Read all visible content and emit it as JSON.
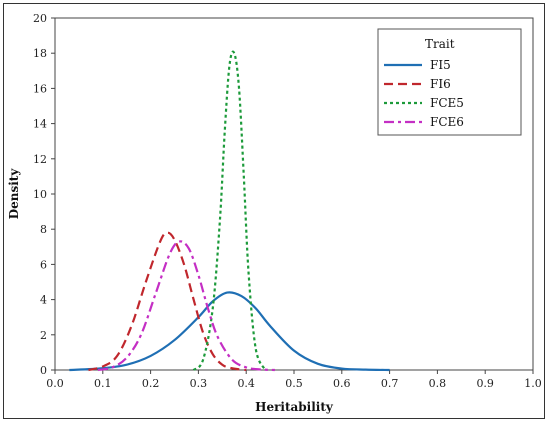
{
  "chart_data": {
    "type": "line",
    "title": "",
    "xlabel": "Heritability",
    "ylabel": "Density",
    "xlim": [
      0.0,
      1.0
    ],
    "ylim": [
      0,
      20
    ],
    "xticks": [
      "0.0",
      "0.1",
      "0.2",
      "0.3",
      "0.4",
      "0.5",
      "0.6",
      "0.7",
      "0.8",
      "0.9",
      "1.0"
    ],
    "yticks": [
      "0",
      "2",
      "4",
      "6",
      "8",
      "10",
      "12",
      "14",
      "16",
      "18",
      "20"
    ],
    "grid": false,
    "legend": {
      "title": "Trait",
      "placement": "top-right"
    },
    "series": [
      {
        "name": "FI5",
        "color": "#1f6fb4",
        "style": "solid",
        "x": [
          0.03,
          0.1,
          0.15,
          0.2,
          0.25,
          0.3,
          0.33,
          0.36,
          0.39,
          0.42,
          0.45,
          0.5,
          0.55,
          0.6,
          0.65,
          0.7
        ],
        "y": [
          0.0,
          0.1,
          0.3,
          0.8,
          1.7,
          3.0,
          3.9,
          4.4,
          4.2,
          3.5,
          2.5,
          1.1,
          0.35,
          0.08,
          0.02,
          0.0
        ]
      },
      {
        "name": "FI6",
        "color": "#c0272d",
        "style": "dashed",
        "x": [
          0.07,
          0.1,
          0.13,
          0.16,
          0.19,
          0.22,
          0.235,
          0.25,
          0.27,
          0.29,
          0.31,
          0.33,
          0.35,
          0.37,
          0.4
        ],
        "y": [
          0.0,
          0.2,
          0.8,
          2.5,
          5.0,
          7.3,
          7.8,
          7.4,
          6.0,
          4.0,
          2.1,
          0.9,
          0.3,
          0.1,
          0.0
        ]
      },
      {
        "name": "FCE5",
        "color": "#1c9a3a",
        "style": "dotted",
        "x": [
          0.29,
          0.31,
          0.33,
          0.345,
          0.355,
          0.365,
          0.375,
          0.385,
          0.395,
          0.405,
          0.42,
          0.44
        ],
        "y": [
          0.0,
          0.6,
          3.5,
          8.5,
          13.5,
          17.3,
          18.0,
          16.0,
          11.0,
          5.5,
          1.2,
          0.0
        ]
      },
      {
        "name": "FCE6",
        "color": "#c42fc4",
        "style": "dashdot",
        "x": [
          0.09,
          0.12,
          0.15,
          0.18,
          0.21,
          0.24,
          0.26,
          0.28,
          0.3,
          0.32,
          0.34,
          0.37,
          0.4,
          0.43,
          0.46
        ],
        "y": [
          0.0,
          0.15,
          0.7,
          2.0,
          4.3,
          6.6,
          7.3,
          6.9,
          5.4,
          3.5,
          1.9,
          0.6,
          0.15,
          0.03,
          0.0
        ]
      }
    ]
  }
}
